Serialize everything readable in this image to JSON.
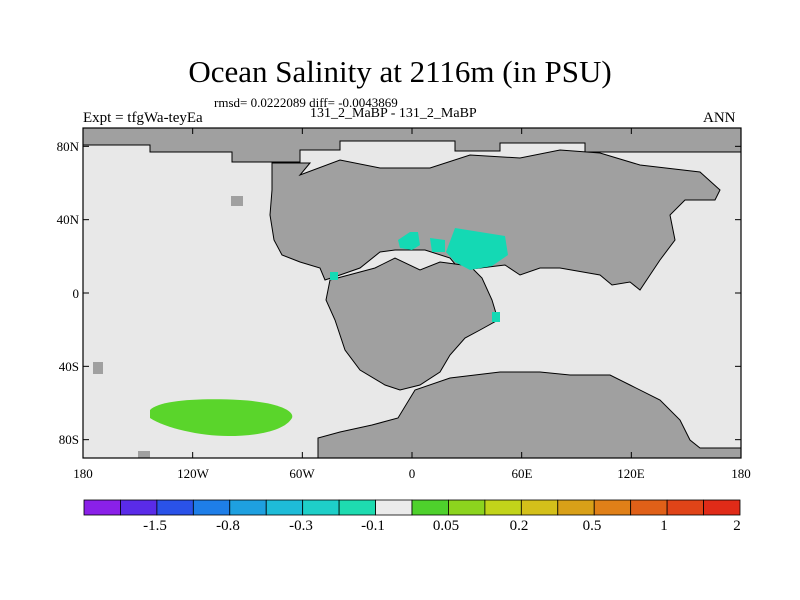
{
  "title": "Ocean Salinity at 2116m (in PSU)",
  "stats_line": "rmsd= 0.0222089 diff= -0.0043869",
  "experiment_label": "Expt = tfgWa-teyEa",
  "cases_label": "131_2_MaBP - 131_2_MaBP",
  "season_label": "ANN",
  "map": {
    "lat_labels": [
      "80N",
      "40N",
      "0",
      "40S",
      "80S"
    ],
    "lat_values": [
      80,
      40,
      0,
      -40,
      -80
    ],
    "lon_labels": [
      "180",
      "120W",
      "60W",
      "0",
      "60E",
      "120E",
      "180"
    ],
    "lon_values": [
      -180,
      -120,
      -60,
      0,
      60,
      120,
      180
    ],
    "lat_range": [
      -90,
      90
    ],
    "lon_range": [
      -180,
      180
    ],
    "colors": {
      "land": "#a0a0a0",
      "ocean_near_zero": "#e8e8e8",
      "coastline": "#000000",
      "positive_anomaly": "#5ad52b",
      "negative_anomaly": "#14d9b4"
    }
  },
  "colorbar": {
    "colors": [
      "#8a20e8",
      "#5a2be8",
      "#2a52e8",
      "#1e7ee8",
      "#1ea0e0",
      "#1ebcd8",
      "#1ecfc8",
      "#1edbb0",
      "#ebebeb",
      "#4ed12c",
      "#8cd41e",
      "#c2d41a",
      "#d4c01a",
      "#d9a018",
      "#e08018",
      "#e06018",
      "#e04418",
      "#e02b18"
    ],
    "labels": [
      "-1.5",
      "-0.8",
      "-0.3",
      "-0.1",
      "0.05",
      "0.2",
      "0.5",
      "1",
      "2"
    ]
  }
}
